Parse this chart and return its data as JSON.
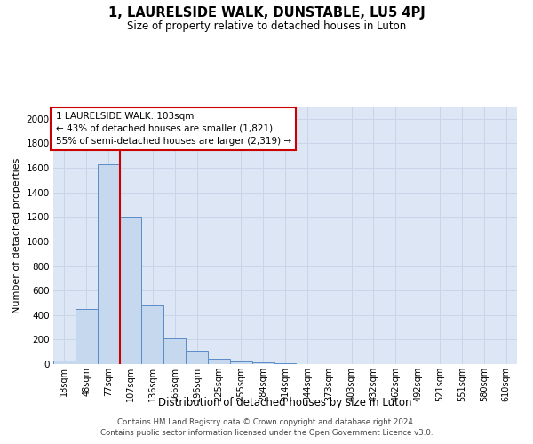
{
  "title": "1, LAURELSIDE WALK, DUNSTABLE, LU5 4PJ",
  "subtitle": "Size of property relative to detached houses in Luton",
  "xlabel": "Distribution of detached houses by size in Luton",
  "ylabel": "Number of detached properties",
  "footer_line1": "Contains HM Land Registry data © Crown copyright and database right 2024.",
  "footer_line2": "Contains public sector information licensed under the Open Government Licence v3.0.",
  "bin_labels": [
    "18sqm",
    "48sqm",
    "77sqm",
    "107sqm",
    "136sqm",
    "166sqm",
    "196sqm",
    "225sqm",
    "255sqm",
    "284sqm",
    "314sqm",
    "344sqm",
    "373sqm",
    "403sqm",
    "432sqm",
    "462sqm",
    "492sqm",
    "521sqm",
    "551sqm",
    "580sqm",
    "610sqm"
  ],
  "bar_values": [
    30,
    450,
    1630,
    1200,
    480,
    210,
    110,
    45,
    25,
    18,
    8,
    2,
    1,
    0,
    0,
    0,
    0,
    0,
    0,
    0,
    0
  ],
  "bar_color": "#c5d8ed",
  "bar_edge_color": "#5b8cc8",
  "highlight_line_color": "#cc0000",
  "annotation_text": "1 LAURELSIDE WALK: 103sqm\n← 43% of detached houses are smaller (1,821)\n55% of semi-detached houses are larger (2,319) →",
  "annotation_box_color": "#ffffff",
  "annotation_box_edge": "#cc0000",
  "ylim": [
    0,
    2100
  ],
  "yticks": [
    0,
    200,
    400,
    600,
    800,
    1000,
    1200,
    1400,
    1600,
    1800,
    2000
  ],
  "grid_color": "#c8d4e8",
  "background_color": "#dce6f5"
}
